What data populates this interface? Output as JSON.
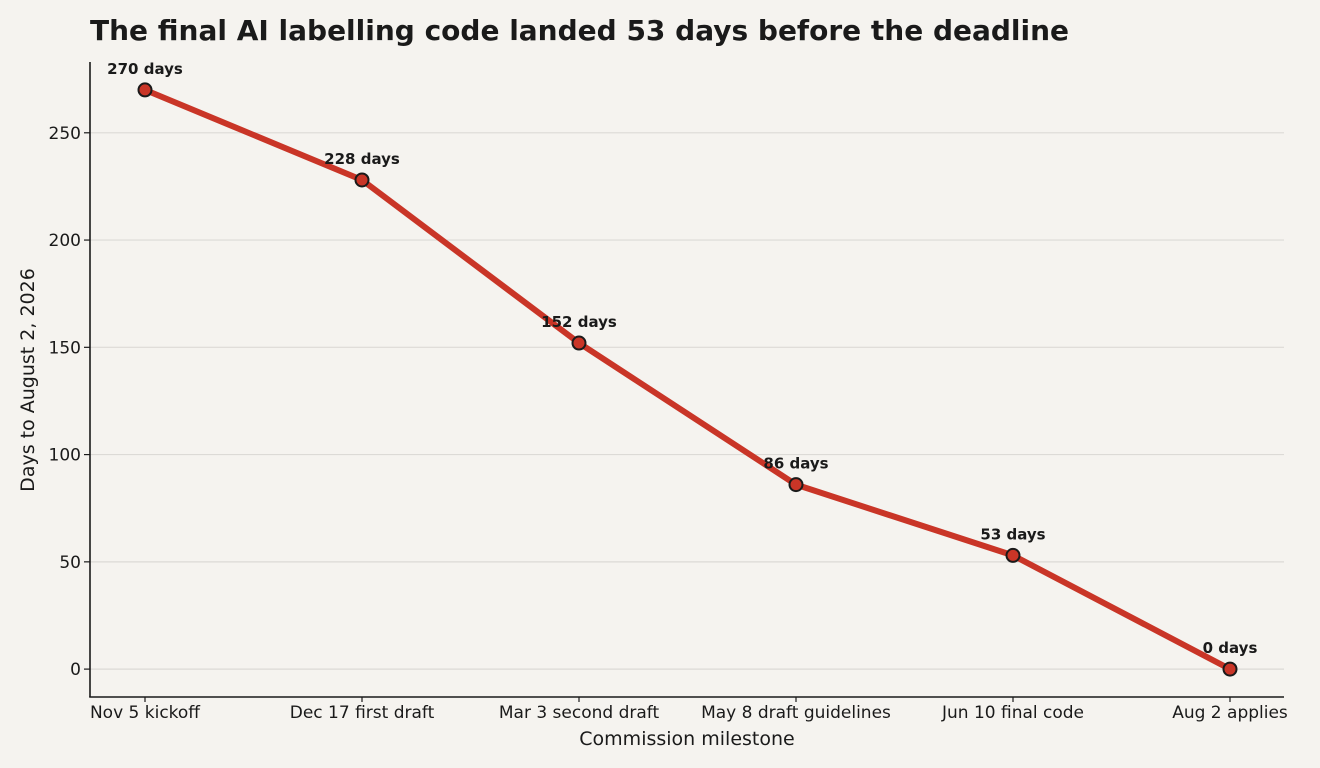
{
  "chart_data": {
    "type": "line",
    "title": "The final AI labelling code landed 53 days before the deadline",
    "xlabel": "Commission milestone",
    "ylabel": "Days to August 2, 2026",
    "categories": [
      "Nov 5 kickoff",
      "Dec 17 first draft",
      "Mar 3 second draft",
      "May 8 draft guidelines",
      "Jun 10 final code",
      "Aug 2 applies"
    ],
    "series": [
      {
        "values": [
          270,
          228,
          152,
          86,
          53,
          0
        ],
        "data_labels": [
          "270 days",
          "228 days",
          "152 days",
          "86 days",
          "53 days",
          "0 days"
        ]
      }
    ],
    "yticks": [
      0,
      50,
      100,
      150,
      200,
      250
    ],
    "ylim": [
      -13,
      283
    ],
    "grid": "horizontal",
    "colors": {
      "line": "#c93527",
      "marker_fill": "#c93527",
      "marker_edge": "#1a1a1a",
      "background": "#f5f3ef"
    }
  }
}
